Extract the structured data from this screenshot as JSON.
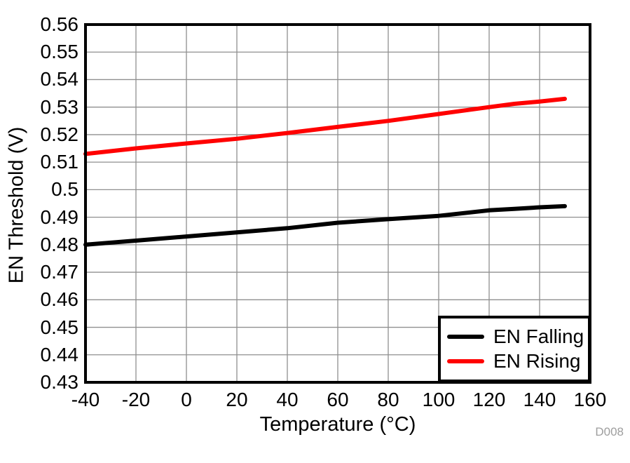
{
  "chart_data": {
    "type": "line",
    "title": "",
    "xlabel": "Temperature (°C)",
    "ylabel": "EN Threshold (V)",
    "xlim": [
      -40,
      160
    ],
    "ylim": [
      0.43,
      0.56
    ],
    "grid": true,
    "legend_position": "bottom-right",
    "x_ticks": [
      -40,
      -20,
      0,
      20,
      40,
      60,
      80,
      100,
      120,
      140,
      160
    ],
    "x_tick_labels": [
      "-40",
      "-20",
      "0",
      "20",
      "40",
      "60",
      "80",
      "100",
      "120",
      "140",
      "160"
    ],
    "y_ticks": [
      0.43,
      0.44,
      0.45,
      0.46,
      0.47,
      0.48,
      0.49,
      0.5,
      0.51,
      0.52,
      0.53,
      0.54,
      0.55,
      0.56
    ],
    "y_tick_labels": [
      "0.43",
      "0.44",
      "0.45",
      "0.46",
      "0.47",
      "0.48",
      "0.49",
      "0.5",
      "0.51",
      "0.52",
      "0.53",
      "0.54",
      "0.55",
      "0.56"
    ],
    "x": [
      -40,
      -20,
      0,
      20,
      40,
      60,
      80,
      100,
      120,
      130,
      140,
      150
    ],
    "series": [
      {
        "name": "EN Falling",
        "color": "#000000",
        "values": [
          0.48,
          0.4815,
          0.483,
          0.4845,
          0.486,
          0.488,
          0.4893,
          0.4905,
          0.4925,
          0.493,
          0.4936,
          0.494
        ]
      },
      {
        "name": "EN Rising",
        "color": "#ff0000",
        "values": [
          0.513,
          0.515,
          0.5168,
          0.5185,
          0.5206,
          0.5228,
          0.525,
          0.5275,
          0.53,
          0.5312,
          0.532,
          0.533
        ]
      }
    ],
    "watermark": "D008"
  },
  "styles": {
    "gridline_color": "#8f8f8f",
    "axis_border_color": "#000000",
    "watermark_color": "#9e9e9e",
    "background_color": "#ffffff"
  }
}
